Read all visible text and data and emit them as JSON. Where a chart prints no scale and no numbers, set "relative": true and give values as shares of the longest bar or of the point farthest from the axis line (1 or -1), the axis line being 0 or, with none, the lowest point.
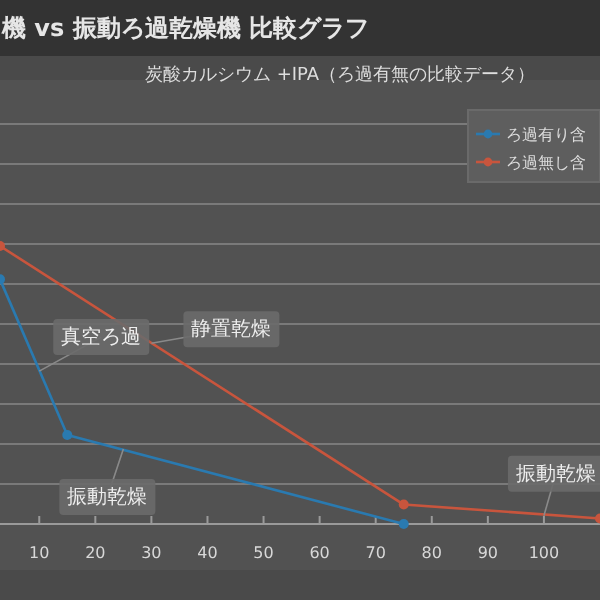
{
  "chart_data": {
    "type": "line",
    "title": "機 vs 振動ろ過乾燥機 比較グラフ",
    "subtitle": "炭酸カルシウム +IPA（ろ過有無の比較データ）",
    "relative": true,
    "xlim": [
      3,
      110
    ],
    "xticks": [
      10,
      20,
      30,
      40,
      50,
      60,
      70,
      80,
      90,
      100
    ],
    "grid": "y",
    "legend": "top right",
    "marker": "circle",
    "series": [
      {
        "name": "ろ過有り含",
        "color": "#2a7ab0",
        "x": [
          3,
          15,
          75
        ],
        "values": [
          0.88,
          0.32,
          0
        ]
      },
      {
        "name": "ろ過無し含",
        "color": "#c8553d",
        "x": [
          3,
          75,
          110
        ],
        "values": [
          1,
          0.07,
          0.02
        ]
      }
    ],
    "annotations": [
      {
        "text": "真空ろ過",
        "x": 10,
        "y": 0.55
      },
      {
        "text": "静置乾燥",
        "x": 30,
        "y": 0.65
      },
      {
        "text": "振動乾燥",
        "x": 25,
        "y": 0.27
      },
      {
        "text": "振動乾燥",
        "x": 100,
        "y": 0.03
      }
    ]
  }
}
